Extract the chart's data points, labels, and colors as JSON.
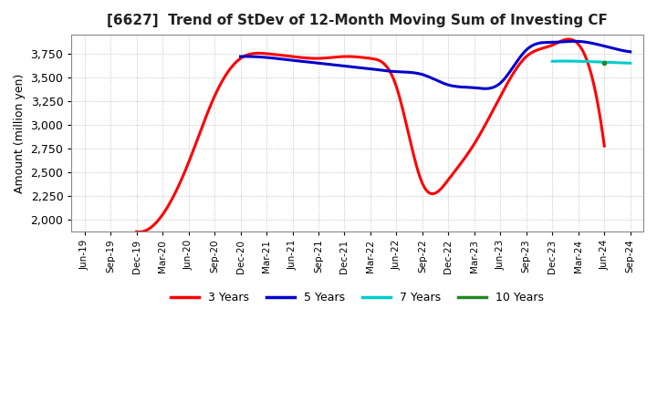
{
  "title": "[6627]  Trend of StDev of 12-Month Moving Sum of Investing CF",
  "ylabel": "Amount (million yen)",
  "background_color": "#ffffff",
  "plot_bg_color": "#ffffff",
  "grid_color": "#aaaaaa",
  "ylim": [
    1875,
    3950
  ],
  "yticks": [
    2000,
    2250,
    2500,
    2750,
    3000,
    3250,
    3500,
    3750
  ],
  "series": {
    "3 Years": {
      "color": "#ff0000",
      "xi": [
        2,
        3,
        4,
        5,
        6,
        7,
        8,
        9,
        10,
        11,
        12,
        13,
        14,
        15,
        16,
        17,
        18,
        19,
        20
      ],
      "values": [
        1870,
        2050,
        2600,
        3300,
        3700,
        3750,
        3720,
        3700,
        3720,
        3700,
        3400,
        2380,
        2420,
        2800,
        3300,
        3720,
        3840,
        3850,
        2775
      ]
    },
    "5 Years": {
      "color": "#0000cc",
      "xi": [
        6,
        7,
        8,
        9,
        10,
        11,
        12,
        13,
        14,
        15,
        16,
        17,
        18,
        19,
        20,
        21
      ],
      "values": [
        3720,
        3710,
        3680,
        3650,
        3620,
        3590,
        3560,
        3530,
        3420,
        3390,
        3440,
        3790,
        3870,
        3880,
        3830,
        3770
      ]
    },
    "7 Years": {
      "color": "#00cccc",
      "xi": [
        18,
        19,
        20,
        21
      ],
      "values": [
        3670,
        3670,
        3660,
        3650
      ]
    },
    "10 Years": {
      "color": "#228822",
      "xi": [
        20
      ],
      "values": [
        3650
      ]
    }
  },
  "xtick_labels": [
    "Jun-19",
    "Sep-19",
    "Dec-19",
    "Mar-20",
    "Jun-20",
    "Sep-20",
    "Dec-20",
    "Mar-21",
    "Jun-21",
    "Sep-21",
    "Dec-21",
    "Mar-22",
    "Jun-22",
    "Sep-22",
    "Dec-22",
    "Mar-23",
    "Jun-23",
    "Sep-23",
    "Dec-23",
    "Mar-24",
    "Jun-24",
    "Sep-24"
  ],
  "legend_labels": [
    "3 Years",
    "5 Years",
    "7 Years",
    "10 Years"
  ],
  "legend_colors": [
    "#ff0000",
    "#0000cc",
    "#00cccc",
    "#228822"
  ]
}
